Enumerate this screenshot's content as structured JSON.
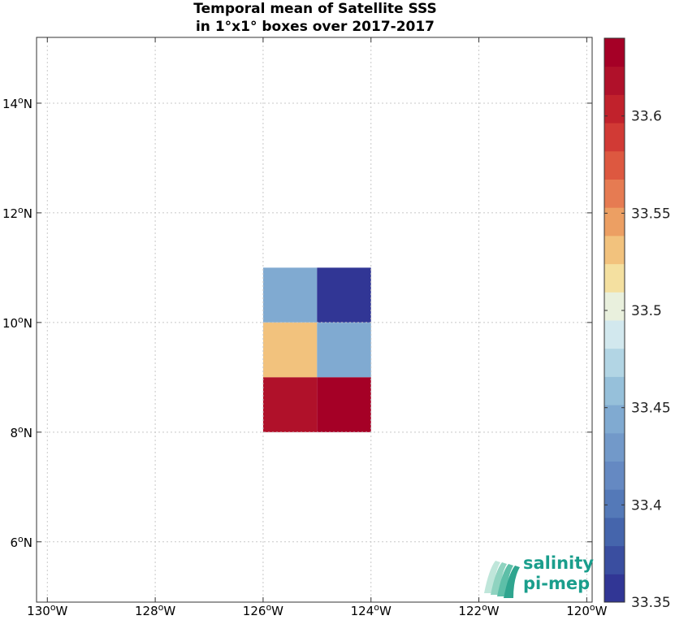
{
  "chart_data": {
    "type": "heatmap",
    "title_line1": "Temporal mean of Satellite SSS",
    "title_line2": "in 1°x1° boxes over 2017-2017",
    "xlim": [
      -130.2,
      -119.9
    ],
    "ylim": [
      4.9,
      15.2
    ],
    "x_ticks": [
      {
        "value": -130,
        "label": "130",
        "suffix": "W"
      },
      {
        "value": -128,
        "label": "128",
        "suffix": "W"
      },
      {
        "value": -126,
        "label": "126",
        "suffix": "W"
      },
      {
        "value": -124,
        "label": "124",
        "suffix": "W"
      },
      {
        "value": -122,
        "label": "122",
        "suffix": "W"
      },
      {
        "value": -120,
        "label": "120",
        "suffix": "W"
      }
    ],
    "y_ticks": [
      {
        "value": 6,
        "label": "6",
        "suffix": "N"
      },
      {
        "value": 8,
        "label": "8",
        "suffix": "N"
      },
      {
        "value": 10,
        "label": "10",
        "suffix": "N"
      },
      {
        "value": 12,
        "label": "12",
        "suffix": "N"
      },
      {
        "value": 14,
        "label": "14",
        "suffix": "N"
      }
    ],
    "degree_symbol": "o",
    "grid": true,
    "cells": [
      {
        "lon": -126,
        "lat": 10,
        "value": 33.45
      },
      {
        "lon": -125,
        "lat": 10,
        "value": 33.36
      },
      {
        "lon": -126,
        "lat": 9,
        "value": 33.525
      },
      {
        "lon": -125,
        "lat": 9,
        "value": 33.44
      },
      {
        "lon": -126,
        "lat": 8,
        "value": 33.62
      },
      {
        "lon": -125,
        "lat": 8,
        "value": 33.635
      }
    ],
    "colorbar": {
      "min": 33.35,
      "max": 33.64,
      "ticks": [
        33.35,
        33.4,
        33.45,
        33.5,
        33.55,
        33.6
      ],
      "tick_labels": [
        "33.35",
        "33.4",
        "33.45",
        "33.5",
        "33.55",
        "33.6"
      ],
      "colors": [
        "#313695",
        "#3a4ea0",
        "#4565ac",
        "#5479b8",
        "#6589c2",
        "#7299c9",
        "#80aad1",
        "#96c0da",
        "#b2d5e4",
        "#d2e8ee",
        "#e9f0dd",
        "#f4e0a0",
        "#f2c27d",
        "#ec9f63",
        "#e67b52",
        "#dd5840",
        "#d13a35",
        "#c1222c",
        "#b0112a",
        "#a50026"
      ]
    }
  },
  "logo": {
    "line1": "salinity",
    "line2": "pi-mep"
  }
}
